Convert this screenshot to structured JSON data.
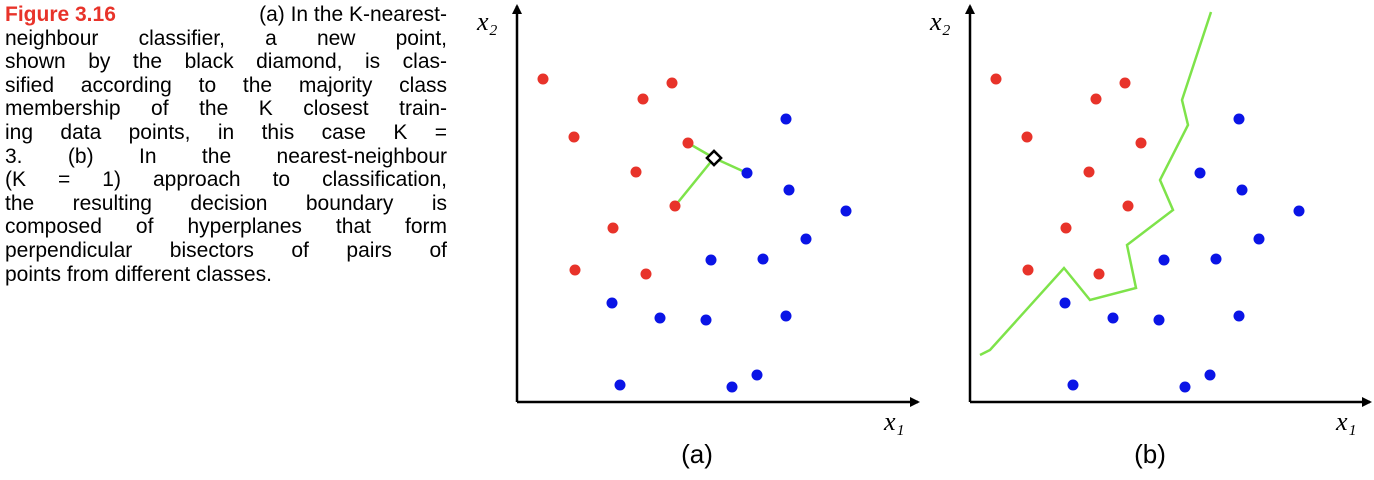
{
  "caption": {
    "label": "Figure 3.16",
    "lines": [
      "(a) In the K-nearest-",
      "neighbour classifier, a new point,",
      "shown by the black diamond, is clas-",
      "sified according to the majority class",
      "membership of the K closest train-",
      "ing data points, in this case K =",
      "3.   (b) In the nearest-neighbour",
      "(K = 1) approach to classification,",
      "the resulting decision boundary is",
      "composed of hyperplanes that form",
      "perpendicular bisectors of pairs of",
      "points from different classes."
    ]
  },
  "panels": [
    {
      "label": "(a)",
      "x_label": "x₁",
      "y_label": "x₂"
    },
    {
      "label": "(b)",
      "x_label": "x₁",
      "y_label": "x₂"
    }
  ]
}
